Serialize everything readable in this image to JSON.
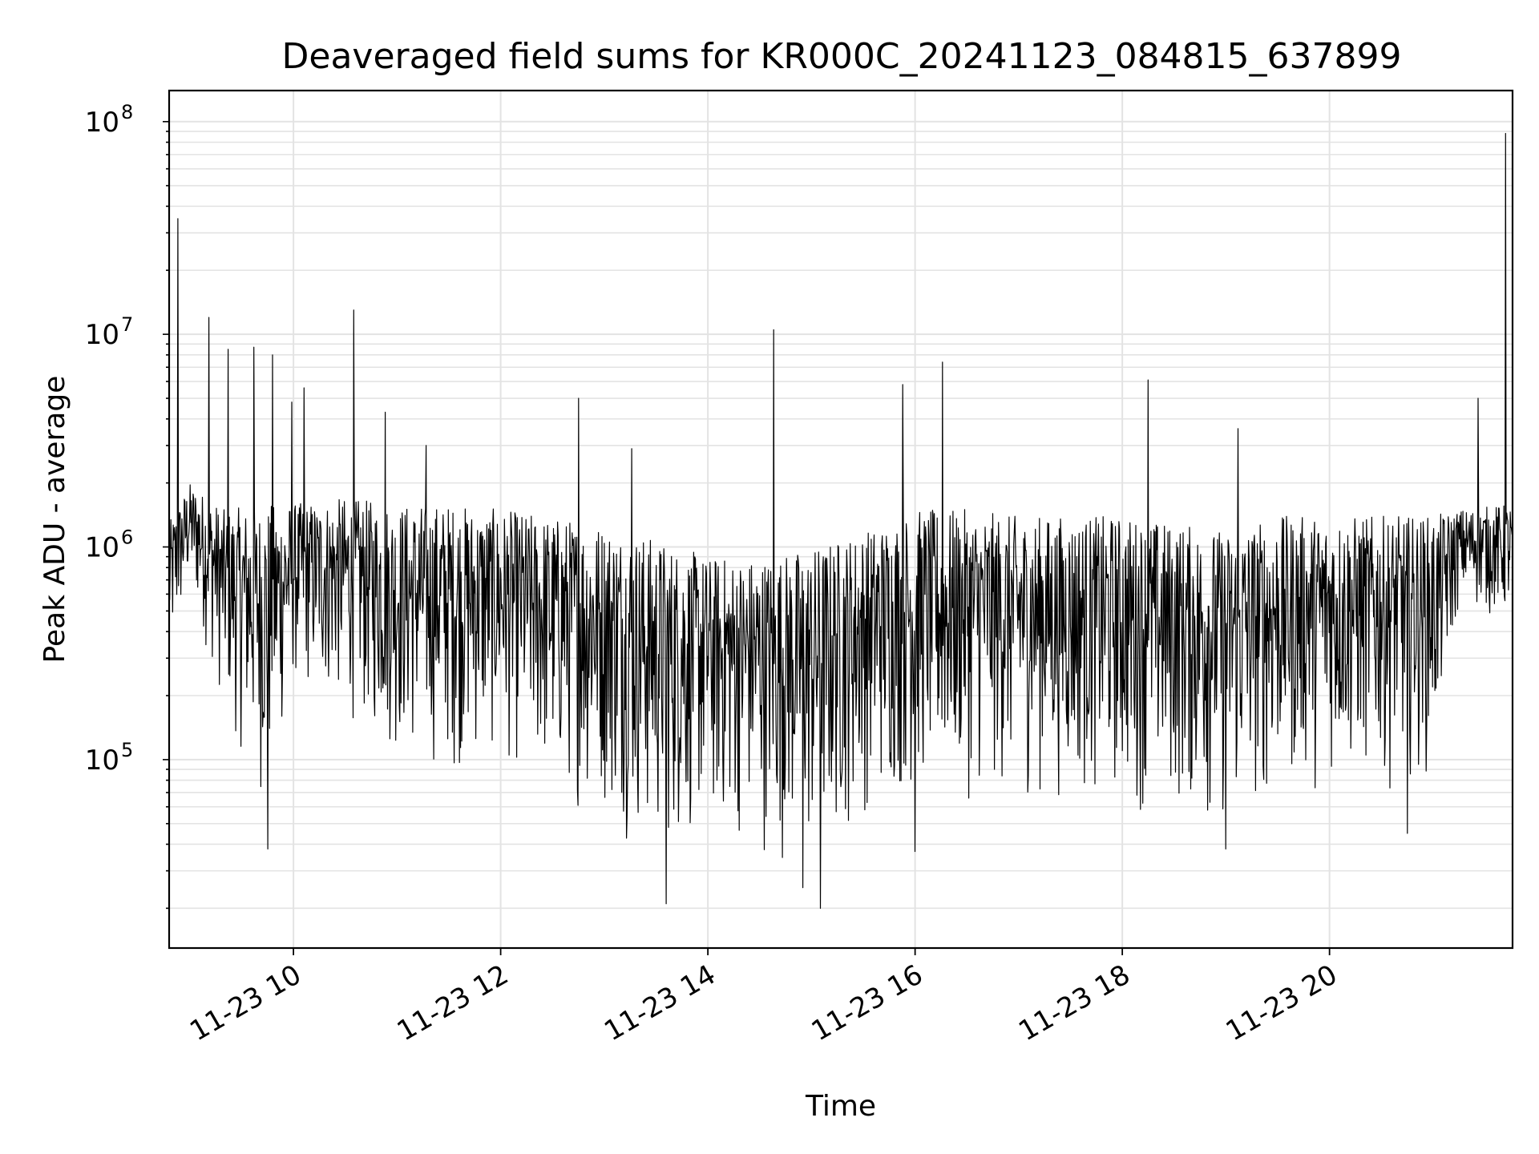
{
  "chart_data": {
    "type": "line",
    "title": "Deaveraged field sums for KR000C_20241123_084815_637899",
    "xlabel": "Time",
    "ylabel": "Peak ADU - average",
    "yscale": "log",
    "ylim": [
      13000,
      140000000
    ],
    "xlim": [
      "2024-11-23 08:48",
      "2024-11-23 21:46"
    ],
    "grid": true,
    "x_ticks": [
      {
        "x": "2024-11-23 10:00",
        "label": "11-23 10"
      },
      {
        "x": "2024-11-23 12:00",
        "label": "11-23 12"
      },
      {
        "x": "2024-11-23 14:00",
        "label": "11-23 14"
      },
      {
        "x": "2024-11-23 16:00",
        "label": "11-23 16"
      },
      {
        "x": "2024-11-23 18:00",
        "label": "11-23 18"
      },
      {
        "x": "2024-11-23 20:00",
        "label": "11-23 20"
      }
    ],
    "y_ticks": [
      {
        "value": 100000,
        "base": "10",
        "exp": "5"
      },
      {
        "value": 1000000,
        "base": "10",
        "exp": "6"
      },
      {
        "value": 10000000,
        "base": "10",
        "exp": "7"
      },
      {
        "value": 100000000,
        "base": "10",
        "exp": "8"
      }
    ],
    "series": [
      {
        "color": "#000000",
        "envelope": [
          {
            "x": "2024-11-23 08:48",
            "low": 220000,
            "high": 1300000
          },
          {
            "x": "2024-11-23 09:00",
            "low": 600000,
            "high": 2000000
          },
          {
            "x": "2024-11-23 09:20",
            "low": 150000,
            "high": 1500000
          },
          {
            "x": "2024-11-23 09:45",
            "low": 50000,
            "high": 1600000
          },
          {
            "x": "2024-11-23 10:00",
            "low": 200000,
            "high": 1600000
          },
          {
            "x": "2024-11-23 10:30",
            "low": 150000,
            "high": 1700000
          },
          {
            "x": "2024-11-23 11:00",
            "low": 90000,
            "high": 1600000
          },
          {
            "x": "2024-11-23 11:30",
            "low": 80000,
            "high": 1600000
          },
          {
            "x": "2024-11-23 12:00",
            "low": 90000,
            "high": 1500000
          },
          {
            "x": "2024-11-23 12:30",
            "low": 60000,
            "high": 1400000
          },
          {
            "x": "2024-11-23 13:00",
            "low": 50000,
            "high": 1300000
          },
          {
            "x": "2024-11-23 13:30",
            "low": 30000,
            "high": 1100000
          },
          {
            "x": "2024-11-23 14:00",
            "low": 40000,
            "high": 900000
          },
          {
            "x": "2024-11-23 14:30",
            "low": 35000,
            "high": 900000
          },
          {
            "x": "2024-11-23 15:00",
            "low": 25000,
            "high": 1000000
          },
          {
            "x": "2024-11-23 15:30",
            "low": 50000,
            "high": 1200000
          },
          {
            "x": "2024-11-23 16:00",
            "low": 60000,
            "high": 1500000
          },
          {
            "x": "2024-11-23 16:30",
            "low": 60000,
            "high": 1500000
          },
          {
            "x": "2024-11-23 17:00",
            "low": 60000,
            "high": 1400000
          },
          {
            "x": "2024-11-23 17:30",
            "low": 60000,
            "high": 1400000
          },
          {
            "x": "2024-11-23 18:00",
            "low": 55000,
            "high": 1400000
          },
          {
            "x": "2024-11-23 18:30",
            "low": 50000,
            "high": 1300000
          },
          {
            "x": "2024-11-23 19:00",
            "low": 40000,
            "high": 1200000
          },
          {
            "x": "2024-11-23 19:30",
            "low": 60000,
            "high": 1400000
          },
          {
            "x": "2024-11-23 20:00",
            "low": 70000,
            "high": 1400000
          },
          {
            "x": "2024-11-23 20:30",
            "low": 70000,
            "high": 1400000
          },
          {
            "x": "2024-11-23 21:00",
            "low": 80000,
            "high": 1400000
          },
          {
            "x": "2024-11-23 21:15",
            "low": 500000,
            "high": 1500000
          },
          {
            "x": "2024-11-23 21:46",
            "low": 400000,
            "high": 1600000
          }
        ],
        "spikes": [
          {
            "x": "2024-11-23 08:53",
            "y": 35000000
          },
          {
            "x": "2024-11-23 09:11",
            "y": 12000000
          },
          {
            "x": "2024-11-23 09:22",
            "y": 8500000
          },
          {
            "x": "2024-11-23 09:37",
            "y": 8700000
          },
          {
            "x": "2024-11-23 09:48",
            "y": 8000000
          },
          {
            "x": "2024-11-23 09:59",
            "y": 4800000
          },
          {
            "x": "2024-11-23 10:06",
            "y": 5600000
          },
          {
            "x": "2024-11-23 10:35",
            "y": 13000000
          },
          {
            "x": "2024-11-23 10:53",
            "y": 4300000
          },
          {
            "x": "2024-11-23 11:17",
            "y": 3000000
          },
          {
            "x": "2024-11-23 12:45",
            "y": 5000000
          },
          {
            "x": "2024-11-23 13:16",
            "y": 2900000
          },
          {
            "x": "2024-11-23 14:38",
            "y": 10500000
          },
          {
            "x": "2024-11-23 15:53",
            "y": 5800000
          },
          {
            "x": "2024-11-23 16:16",
            "y": 7400000
          },
          {
            "x": "2024-11-23 18:15",
            "y": 6100000
          },
          {
            "x": "2024-11-23 19:07",
            "y": 3600000
          },
          {
            "x": "2024-11-23 21:26",
            "y": 5000000
          },
          {
            "x": "2024-11-23 21:42",
            "y": 88000000
          }
        ],
        "dips": [
          {
            "x": "2024-11-23 09:45",
            "y": 38000
          },
          {
            "x": "2024-11-23 13:36",
            "y": 21000
          },
          {
            "x": "2024-11-23 14:55",
            "y": 25000
          },
          {
            "x": "2024-11-23 15:05",
            "y": 20000
          },
          {
            "x": "2024-11-23 16:00",
            "y": 37000
          },
          {
            "x": "2024-11-23 19:00",
            "y": 38000
          },
          {
            "x": "2024-11-23 20:45",
            "y": 45000
          }
        ]
      }
    ]
  }
}
